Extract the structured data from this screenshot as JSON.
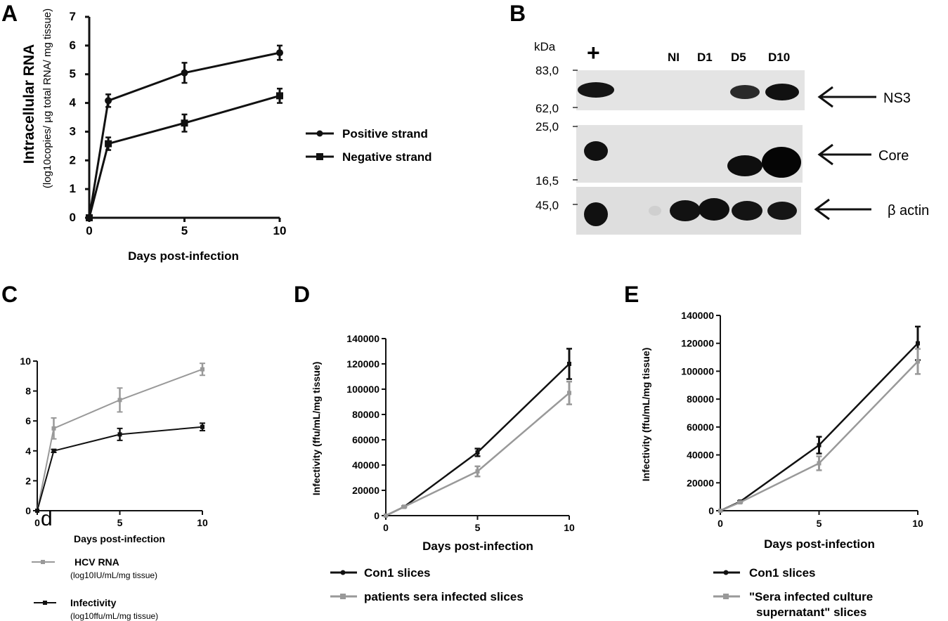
{
  "panels": {
    "a": {
      "letter": "A"
    },
    "b": {
      "letter": "B"
    },
    "c": {
      "letter": "C",
      "stray_mark": "d"
    },
    "d": {
      "letter": "D"
    },
    "e": {
      "letter": "E"
    }
  },
  "colors": {
    "black": "#111111",
    "gray": "#999999"
  },
  "chart_data": [
    {
      "id": "A",
      "type": "line",
      "xlabel": "Days post-infection",
      "ylabel": "Intracellular RNA",
      "ylabel_sub": "(log10copies/ µg total RNA/ mg tissue)",
      "xlim": [
        0,
        10
      ],
      "ylim": [
        0,
        7
      ],
      "xticks": [
        "0",
        "5",
        "10"
      ],
      "yticks": [
        "0",
        "1",
        "2",
        "3",
        "4",
        "5",
        "6",
        "7"
      ],
      "x": [
        0,
        1,
        5,
        10
      ],
      "series": [
        {
          "name": "Positive strand",
          "marker": "circle",
          "color": "#111111",
          "values": [
            0,
            4.08,
            5.05,
            5.75
          ],
          "errors": [
            0,
            0.22,
            0.35,
            0.25
          ]
        },
        {
          "name": "Negative strand",
          "marker": "square",
          "color": "#111111",
          "values": [
            0,
            2.58,
            3.3,
            4.25
          ],
          "errors": [
            0,
            0.22,
            0.3,
            0.25
          ]
        }
      ],
      "legend_position": "right"
    },
    {
      "id": "C",
      "type": "line",
      "xlabel": "Days post-infection",
      "ylabel": "",
      "xlim": [
        0,
        10
      ],
      "ylim": [
        0,
        10
      ],
      "xticks": [
        "0",
        "5",
        "10"
      ],
      "yticks": [
        "0",
        "2",
        "4",
        "6",
        "8",
        "10"
      ],
      "x": [
        0,
        1,
        5,
        10
      ],
      "series": [
        {
          "name": "HCV RNA",
          "name_sub": "(log10IU/mL/mg tissue)",
          "color": "#999999",
          "values": [
            0,
            5.5,
            7.4,
            9.45
          ],
          "errors": [
            0,
            0.7,
            0.8,
            0.4
          ]
        },
        {
          "name": "Infectivity",
          "name_sub": "(log10ffu/mL/mg tissue)",
          "color": "#111111",
          "values": [
            0,
            4.0,
            5.1,
            5.6
          ],
          "errors": [
            0,
            0.1,
            0.4,
            0.25
          ]
        }
      ],
      "legend_position": "bottom"
    },
    {
      "id": "D",
      "type": "line",
      "xlabel": "Days post-infection",
      "ylabel": "Infectivity (ffu/mL/mg tissue)",
      "xlim": [
        0,
        10
      ],
      "ylim": [
        0,
        140000
      ],
      "xticks": [
        "0",
        "5",
        "10"
      ],
      "yticks": [
        "0",
        "20000",
        "40000",
        "60000",
        "80000",
        "100000",
        "120000",
        "140000"
      ],
      "x": [
        0,
        1,
        5,
        10
      ],
      "series": [
        {
          "name": "Con1 slices",
          "color": "#111111",
          "values": [
            0,
            7000,
            50000,
            120000
          ],
          "errors": [
            0,
            500,
            3000,
            12000
          ]
        },
        {
          "name": "patients sera infected slices",
          "color": "#999999",
          "values": [
            0,
            7000,
            35000,
            97000
          ],
          "errors": [
            0,
            500,
            4000,
            9000
          ]
        }
      ],
      "legend_position": "bottom"
    },
    {
      "id": "E",
      "type": "line",
      "xlabel": "Days post-infection",
      "ylabel": "Infectivity (ffu/mL/mg tissue)",
      "xlim": [
        0,
        10
      ],
      "ylim": [
        0,
        140000
      ],
      "xticks": [
        "0",
        "5",
        "10"
      ],
      "yticks": [
        "0",
        "20000",
        "40000",
        "60000",
        "80000",
        "100000",
        "120000",
        "140000"
      ],
      "x": [
        0,
        1,
        5,
        10
      ],
      "series": [
        {
          "name": "Con1 slices",
          "color": "#111111",
          "values": [
            0,
            6500,
            47000,
            120000
          ],
          "errors": [
            0,
            500,
            6000,
            12000
          ]
        },
        {
          "name": "\"Sera infected culture supernatant\" slices",
          "color": "#999999",
          "values": [
            0,
            6000,
            34000,
            107000
          ],
          "errors": [
            0,
            500,
            5000,
            9000
          ]
        }
      ],
      "legend_position": "bottom"
    }
  ],
  "blot": {
    "unit": "kDa",
    "plus_lane": "+",
    "lanes": [
      "NI",
      "D1",
      "D5",
      "D10"
    ],
    "markers": [
      "83,0",
      "62,0",
      "25,0",
      "16,5",
      "45,0"
    ],
    "bands": [
      "NS3",
      "Core",
      "β actin"
    ]
  }
}
